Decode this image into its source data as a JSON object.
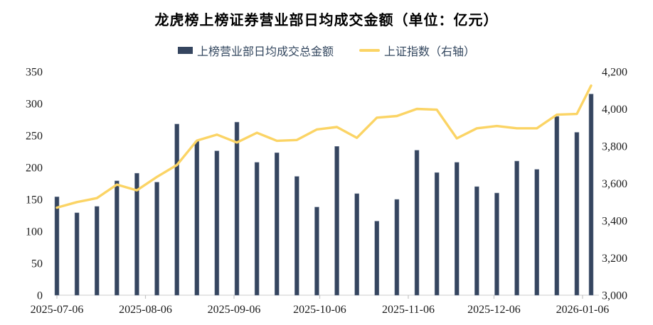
{
  "title": "龙虎榜上榜证券营业部日均成交金额（单位：亿元）",
  "legend": {
    "bar_label": "上榜营业部日均成交总金额",
    "line_label": "上证指数（右轴）"
  },
  "colors": {
    "bar": "#35455F",
    "bar_edge": "#7c89a0",
    "line": "#FBD465",
    "axis_line": "#d6d6d6",
    "tick_mark": "#c4c4c4",
    "axis_text": "#1c1c1c",
    "legend_text": "#33475f",
    "title_text": "#000000",
    "background": "#ffffff"
  },
  "chart_data": {
    "type": "bar+line",
    "title": "龙虎榜上榜证券营业部日均成交金额（单位：亿元）",
    "grid": false,
    "legend_position": "top",
    "x_dates": [
      "2025-07-06",
      "2025-07-13",
      "2025-07-20",
      "2025-07-27",
      "2025-08-03",
      "2025-08-10",
      "2025-08-17",
      "2025-08-24",
      "2025-08-31",
      "2025-09-07",
      "2025-09-14",
      "2025-09-21",
      "2025-09-28",
      "2025-10-05",
      "2025-10-12",
      "2025-10-19",
      "2025-10-26",
      "2025-11-02",
      "2025-11-09",
      "2025-11-16",
      "2025-11-23",
      "2025-11-30",
      "2025-12-07",
      "2025-12-14",
      "2025-12-21",
      "2025-12-28",
      "2026-01-04",
      "2026-01-09"
    ],
    "x_tick_labels": [
      "2025-07-06",
      "2025-08-06",
      "2025-09-06",
      "2025-10-06",
      "2025-11-06",
      "2025-12-06",
      "2026-01-06"
    ],
    "series": [
      {
        "name": "上榜营业部日均成交总金额",
        "type": "bar",
        "axis": "left",
        "color": "#35455F",
        "values": [
          154,
          129,
          139,
          179,
          191,
          177,
          268,
          241,
          226,
          271,
          208,
          223,
          186,
          138,
          233,
          159,
          116,
          150,
          227,
          192,
          208,
          170,
          160,
          210,
          197,
          280,
          255,
          315
        ]
      },
      {
        "name": "上证指数（右轴）",
        "type": "line",
        "axis": "right",
        "color": "#FBD465",
        "values": [
          3470,
          3500,
          3521,
          3594,
          3563,
          3635,
          3699,
          3830,
          3862,
          3820,
          3872,
          3829,
          3833,
          3890,
          3903,
          3845,
          3953,
          3962,
          4000,
          3996,
          3842,
          3896,
          3908,
          3896,
          3896,
          3969,
          3973,
          4125
        ]
      }
    ],
    "left_axis": {
      "min": 0,
      "max": 350,
      "step": 50,
      "tick_labels": [
        "0",
        "50",
        "100",
        "150",
        "200",
        "250",
        "300",
        "350"
      ]
    },
    "right_axis": {
      "min": 3000,
      "max": 4200,
      "step": 200,
      "tick_labels": [
        "3,000",
        "3,200",
        "3,400",
        "3,600",
        "3,800",
        "4,000",
        "4,200"
      ]
    }
  }
}
